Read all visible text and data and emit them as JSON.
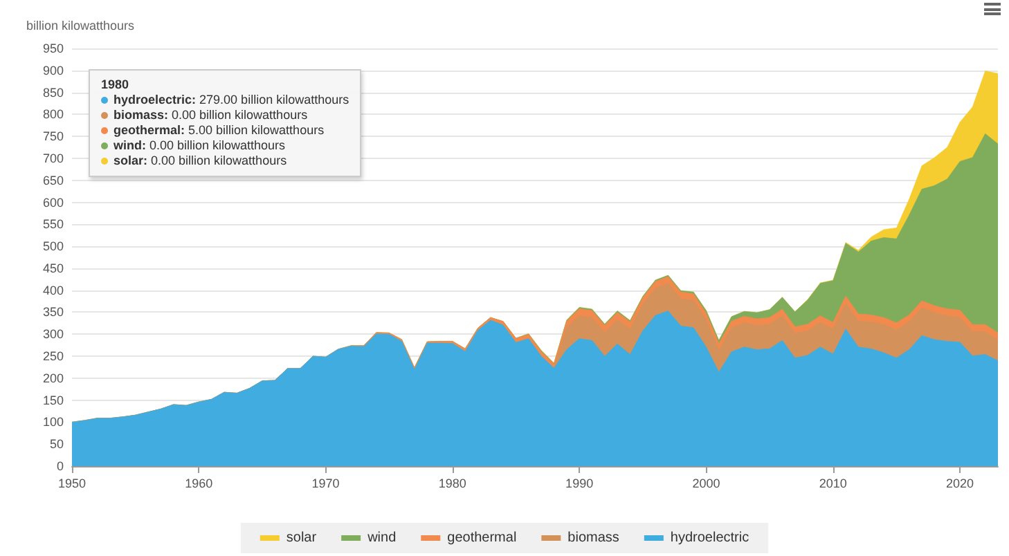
{
  "chart_data": {
    "type": "area",
    "ylabel": "billion kilowatthours",
    "stacked": true,
    "grid": "y",
    "legend": "bottom",
    "annotations": [
      "1980",
      "hydroelectric: 279.00 billion kilowatthours",
      "biomass: 0.00 billion kilowatthours",
      "geothermal: 5.00 billion kilowatthours",
      "wind: 0.00 billion kilowatthours",
      "solar: 0.00 billion kilowatthours"
    ],
    "xlim": [
      1950,
      2023
    ],
    "xticks": [
      1950,
      1960,
      1970,
      1980,
      1990,
      2000,
      2010,
      2020
    ],
    "ylim": [
      0,
      950
    ],
    "yticks": [
      0,
      50,
      100,
      150,
      200,
      250,
      300,
      350,
      400,
      450,
      500,
      550,
      600,
      650,
      700,
      750,
      800,
      850,
      900,
      950
    ],
    "x": [
      1950,
      1951,
      1952,
      1953,
      1954,
      1955,
      1956,
      1957,
      1958,
      1959,
      1960,
      1961,
      1962,
      1963,
      1964,
      1965,
      1966,
      1967,
      1968,
      1969,
      1970,
      1971,
      1972,
      1973,
      1974,
      1975,
      1976,
      1977,
      1978,
      1979,
      1980,
      1981,
      1982,
      1983,
      1984,
      1985,
      1986,
      1987,
      1988,
      1989,
      1990,
      1991,
      1992,
      1993,
      1994,
      1995,
      1996,
      1997,
      1998,
      1999,
      2000,
      2001,
      2002,
      2003,
      2004,
      2005,
      2006,
      2007,
      2008,
      2009,
      2010,
      2011,
      2012,
      2013,
      2014,
      2015,
      2016,
      2017,
      2018,
      2019,
      2020,
      2021,
      2022,
      2023
    ],
    "series": [
      {
        "name": "hydroelectric",
        "color": "#41acdf",
        "values": [
          100,
          104,
          109,
          109,
          112,
          116,
          123,
          130,
          140,
          138,
          146,
          152,
          168,
          166,
          177,
          194,
          195,
          222,
          222,
          250,
          248,
          266,
          273,
          272,
          301,
          300,
          284,
          220,
          280,
          280,
          279,
          261,
          309,
          332,
          321,
          281,
          290,
          250,
          223,
          265,
          290,
          286,
          250,
          278,
          254,
          308,
          343,
          353,
          319,
          315,
          271,
          214,
          260,
          271,
          265,
          267,
          286,
          246,
          252,
          271,
          255,
          312,
          271,
          267,
          258,
          246,
          265,
          297,
          288,
          284,
          282,
          251,
          254,
          240
        ]
      },
      {
        "name": "biomass",
        "color": "#d4925a",
        "values": [
          0,
          0,
          0,
          0,
          0,
          0,
          0,
          0,
          0,
          0,
          0,
          0,
          0,
          0,
          0,
          0,
          0,
          0,
          0,
          0,
          0,
          0,
          0,
          0,
          0,
          0,
          0,
          0,
          0,
          0,
          0,
          0,
          0,
          0,
          0,
          0,
          0,
          0,
          0,
          50,
          52,
          52,
          54,
          55,
          58,
          61,
          62,
          63,
          62,
          62,
          62,
          50,
          55,
          55,
          55,
          56,
          56,
          56,
          56,
          56,
          57,
          58,
          59,
          61,
          64,
          64,
          63,
          63,
          61,
          58,
          56,
          55,
          52,
          47
        ]
      },
      {
        "name": "geothermal",
        "color": "#f28a4e",
        "values": [
          0,
          0,
          0,
          0,
          0,
          0,
          0,
          0,
          0,
          0,
          0,
          0,
          0,
          0,
          0,
          0,
          0,
          0,
          0,
          0,
          0,
          0,
          1,
          2,
          3,
          3,
          4,
          4,
          3,
          4,
          5,
          6,
          5,
          6,
          8,
          9,
          10,
          11,
          10,
          15,
          16,
          16,
          16,
          17,
          16,
          14,
          15,
          15,
          15,
          15,
          15,
          15,
          15,
          15,
          15,
          15,
          15,
          15,
          15,
          15,
          15,
          17,
          16,
          16,
          16,
          16,
          16,
          16,
          16,
          16,
          17,
          16,
          16,
          16
        ]
      },
      {
        "name": "wind",
        "color": "#80ad5c",
        "values": [
          0,
          0,
          0,
          0,
          0,
          0,
          0,
          0,
          0,
          0,
          0,
          0,
          0,
          0,
          0,
          0,
          0,
          0,
          0,
          0,
          0,
          0,
          0,
          0,
          0,
          0,
          0,
          0,
          0,
          0,
          0,
          0,
          0,
          0,
          0,
          1,
          1,
          2,
          1,
          2,
          3,
          3,
          3,
          3,
          3,
          3,
          3,
          3,
          3,
          4,
          6,
          7,
          10,
          11,
          14,
          18,
          27,
          34,
          55,
          74,
          95,
          120,
          141,
          168,
          182,
          191,
          227,
          254,
          273,
          295,
          338,
          380,
          434,
          430
        ]
      },
      {
        "name": "solar",
        "color": "#f5cd30",
        "values": [
          0,
          0,
          0,
          0,
          0,
          0,
          0,
          0,
          0,
          0,
          0,
          0,
          0,
          0,
          0,
          0,
          0,
          0,
          0,
          0,
          0,
          0,
          0,
          0,
          0,
          0,
          0,
          0,
          0,
          0,
          0,
          0,
          0,
          0,
          0,
          0,
          0,
          0,
          0,
          0,
          0,
          0,
          0,
          0,
          0,
          0,
          0,
          0,
          0,
          0,
          0,
          0,
          0,
          0,
          0,
          0,
          0,
          0,
          1,
          1,
          1,
          2,
          4,
          9,
          18,
          25,
          36,
          53,
          64,
          72,
          89,
          115,
          143,
          160
        ]
      }
    ]
  }
}
